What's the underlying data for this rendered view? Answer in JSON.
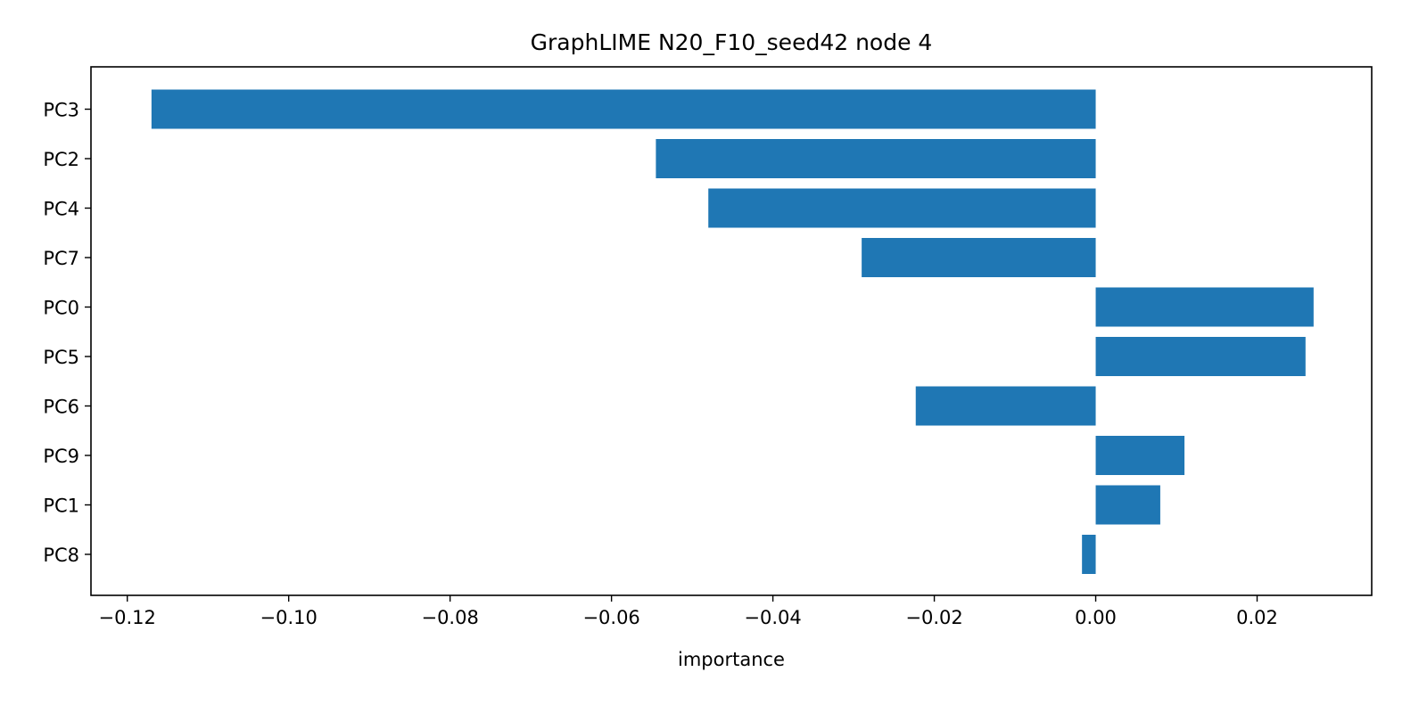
{
  "chart_data": {
    "type": "bar",
    "orientation": "horizontal",
    "title": "GraphLIME N20_F10_seed42 node 4",
    "xlabel": "importance",
    "ylabel": "",
    "categories": [
      "PC3",
      "PC2",
      "PC4",
      "PC7",
      "PC0",
      "PC5",
      "PC6",
      "PC9",
      "PC1",
      "PC8"
    ],
    "values": [
      -0.117,
      -0.0545,
      -0.048,
      -0.029,
      0.027,
      0.026,
      -0.0223,
      0.011,
      0.008,
      -0.0017
    ],
    "xlim": [
      -0.1245,
      0.0342
    ],
    "xticks": [
      -0.12,
      -0.1,
      -0.08,
      -0.06,
      -0.04,
      -0.02,
      0.0,
      0.02
    ],
    "xtick_labels": [
      "−0.12",
      "−0.10",
      "−0.08",
      "−0.06",
      "−0.04",
      "−0.02",
      "0.00",
      "0.02"
    ],
    "bar_color": "#1f77b4",
    "grid": false,
    "legend": "none"
  }
}
